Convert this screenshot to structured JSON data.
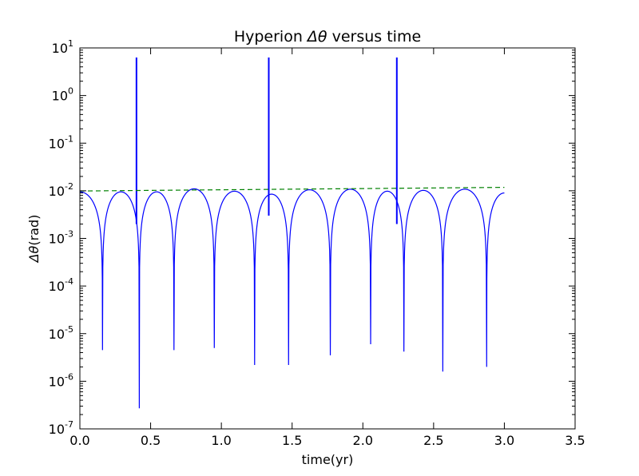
{
  "chart_data": {
    "type": "line",
    "title": "Hyperion Δθ versus time",
    "title_prefix": "Hyperion ",
    "title_symbol": "Δθ",
    "title_suffix": " versus time",
    "xlabel": "time(yr)",
    "ylabel": "Δθ(rad)",
    "ylabel_symbol": "Δθ",
    "ylabel_unit": "(rad)",
    "xlim": [
      0,
      3.5
    ],
    "ylim": [
      1e-07,
      10
    ],
    "yscale": "log",
    "grid": false,
    "x_ticks": [
      "0.0",
      "0.5",
      "1.0",
      "1.5",
      "2.0",
      "2.5",
      "3.0",
      "3.5"
    ],
    "x_tick_values": [
      0,
      0.5,
      1,
      1.5,
      2,
      2.5,
      3,
      3.5
    ],
    "y_ticks": [
      {
        "base": "10",
        "exp": "-7"
      },
      {
        "base": "10",
        "exp": "-6"
      },
      {
        "base": "10",
        "exp": "-5"
      },
      {
        "base": "10",
        "exp": "-4"
      },
      {
        "base": "10",
        "exp": "-3"
      },
      {
        "base": "10",
        "exp": "-2"
      },
      {
        "base": "10",
        "exp": "-1"
      },
      {
        "base": "10",
        "exp": "0"
      },
      {
        "base": "10",
        "exp": "1"
      }
    ],
    "y_tick_values": [
      1e-07,
      1e-06,
      1e-05,
      0.0001,
      0.001,
      0.01,
      0.1,
      1,
      10
    ],
    "series": [
      {
        "style": "solid",
        "color": "#0000ff",
        "start": {
          "x": 0.0,
          "y": 0.0095
        },
        "end": {
          "x": 3.0,
          "y": 0.009
        },
        "minima": [
          {
            "x": 0.16,
            "y": 4.5e-06
          },
          {
            "x": 0.42,
            "y": 2.7e-07
          },
          {
            "x": 0.665,
            "y": 4.5e-06
          },
          {
            "x": 0.95,
            "y": 5e-06
          },
          {
            "x": 1.235,
            "y": 2.2e-06
          },
          {
            "x": 1.475,
            "y": 2.2e-06
          },
          {
            "x": 1.77,
            "y": 3.5e-06
          },
          {
            "x": 2.055,
            "y": 6e-06
          },
          {
            "x": 2.29,
            "y": 4.2e-06
          },
          {
            "x": 2.565,
            "y": 1.6e-06
          },
          {
            "x": 2.875,
            "y": 2e-06
          }
        ],
        "peaks": [
          {
            "x": 0.3,
            "y": 0.0095
          },
          {
            "x": 0.535,
            "y": 0.0095
          },
          {
            "x": 0.805,
            "y": 0.011
          },
          {
            "x": 1.095,
            "y": 0.0098
          },
          {
            "x": 1.36,
            "y": 0.0085
          },
          {
            "x": 1.62,
            "y": 0.0105
          },
          {
            "x": 1.915,
            "y": 0.0108
          },
          {
            "x": 2.175,
            "y": 0.0098
          },
          {
            "x": 2.42,
            "y": 0.0102
          },
          {
            "x": 2.715,
            "y": 0.0108
          }
        ],
        "spikes": [
          {
            "x": 0.4,
            "from": 0.002,
            "to": 6.3
          },
          {
            "x": 1.335,
            "from": 0.003,
            "to": 6.3
          },
          {
            "x": 2.24,
            "from": 0.002,
            "to": 6.3
          }
        ]
      },
      {
        "style": "dashed",
        "color": "#008000",
        "x": [
          0.0,
          3.0
        ],
        "y": [
          0.0099,
          0.0118
        ]
      }
    ]
  }
}
